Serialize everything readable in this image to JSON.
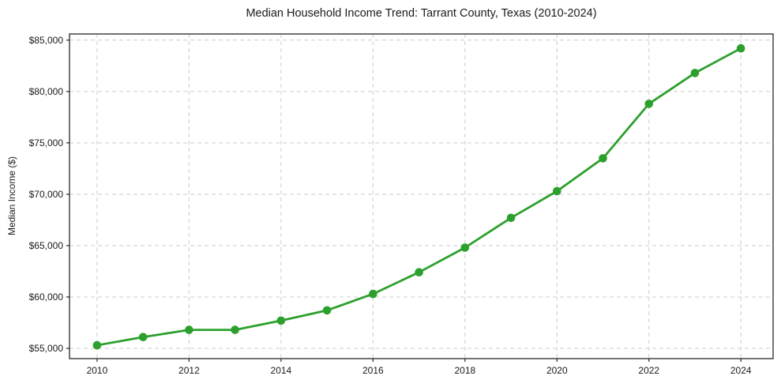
{
  "chart_data": {
    "type": "line",
    "title": "Median Household Income Trend: Tarrant County, Texas (2010-2024)",
    "xlabel": "",
    "ylabel": "Median Income ($)",
    "x": [
      2010,
      2011,
      2012,
      2013,
      2014,
      2015,
      2016,
      2017,
      2018,
      2019,
      2020,
      2021,
      2022,
      2023,
      2024
    ],
    "values": [
      55300,
      56100,
      56800,
      56800,
      57700,
      58700,
      60300,
      62400,
      64800,
      67700,
      70300,
      73500,
      78800,
      81800,
      84200
    ],
    "x_ticks": [
      2010,
      2012,
      2014,
      2016,
      2018,
      2020,
      2022,
      2024
    ],
    "y_ticks": [
      55000,
      60000,
      65000,
      70000,
      75000,
      80000,
      85000
    ],
    "y_tick_prefix": "$",
    "xlim": [
      2009.4,
      2024.7
    ],
    "ylim": [
      54000,
      85600
    ],
    "grid": true,
    "grid_style": "dashed",
    "legend": "none",
    "marker": "circle",
    "colors": {
      "line": "#2ca02c",
      "marker": "#2ca02c",
      "grid": "#cccccc",
      "axis": "#262626",
      "text": "#1a1a1a",
      "background": "#ffffff"
    }
  }
}
